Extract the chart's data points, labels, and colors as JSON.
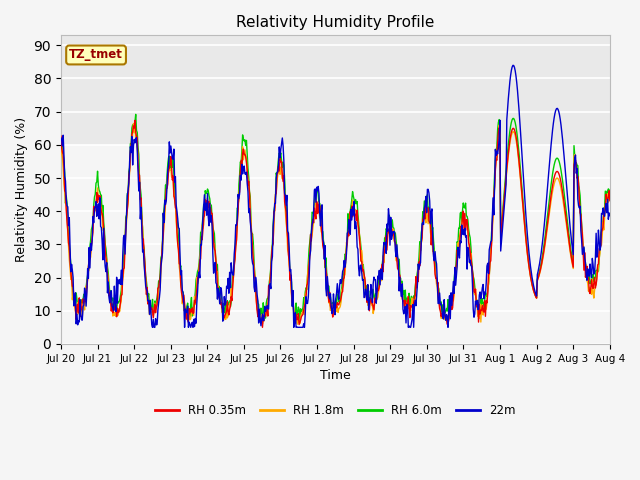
{
  "title": "Relativity Humidity Profile",
  "xlabel": "Time",
  "ylabel": "Relativity Humidity (%)",
  "ylim": [
    0,
    93
  ],
  "yticks": [
    0,
    10,
    20,
    30,
    40,
    50,
    60,
    70,
    80,
    90
  ],
  "legend_labels": [
    "RH 0.35m",
    "RH 1.8m",
    "RH 6.0m",
    "22m"
  ],
  "legend_colors": [
    "#ee0000",
    "#ffaa00",
    "#00cc00",
    "#0000cc"
  ],
  "annotation_text": "TZ_tmet",
  "annotation_color": "#990000",
  "annotation_bg": "#ffffbb",
  "annotation_edge": "#aa7700",
  "background_color": "#f5f5f5",
  "plot_bg": "#f5f5f5",
  "grid_color": "#ffffff",
  "band_color": "#e8e8e8",
  "tick_labels": [
    "Jul 20",
    "Jul 21",
    "Jul 22",
    "Jul 23",
    "Jul 24",
    "Jul 25",
    "Jul 26",
    "Jul 27",
    "Jul 28",
    "Jul 29",
    "Jul 30",
    "Jul 31",
    "Aug 1",
    "Aug 2",
    "Aug 3",
    "Aug 4"
  ],
  "line_width": 1.0,
  "n_days": 15,
  "n_per_day": 48
}
